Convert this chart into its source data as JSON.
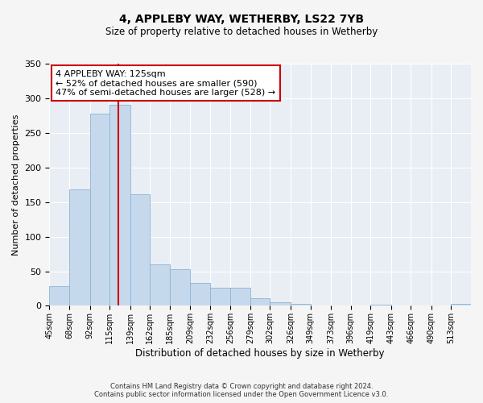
{
  "title": "4, APPLEBY WAY, WETHERBY, LS22 7YB",
  "subtitle": "Size of property relative to detached houses in Wetherby",
  "xlabel": "Distribution of detached houses by size in Wetherby",
  "ylabel": "Number of detached properties",
  "bar_labels": [
    "45sqm",
    "68sqm",
    "92sqm",
    "115sqm",
    "139sqm",
    "162sqm",
    "185sqm",
    "209sqm",
    "232sqm",
    "256sqm",
    "279sqm",
    "302sqm",
    "326sqm",
    "349sqm",
    "373sqm",
    "396sqm",
    "419sqm",
    "443sqm",
    "466sqm",
    "490sqm",
    "513sqm"
  ],
  "bar_values": [
    29,
    168,
    278,
    291,
    161,
    60,
    53,
    33,
    26,
    26,
    11,
    5,
    3,
    0,
    1,
    0,
    2,
    0,
    1,
    0,
    3
  ],
  "bar_color": "#c6d9ec",
  "bar_edge_color": "#8db4d4",
  "plot_bg_color": "#e8eef4",
  "fig_bg_color": "#f5f5f5",
  "grid_color": "#ffffff",
  "ylim": [
    0,
    350
  ],
  "yticks": [
    0,
    50,
    100,
    150,
    200,
    250,
    300,
    350
  ],
  "property_line_x": 125,
  "property_line_color": "#cc0000",
  "annotation_text": "4 APPLEBY WAY: 125sqm\n← 52% of detached houses are smaller (590)\n47% of semi-detached houses are larger (528) →",
  "annotation_box_color": "#ffffff",
  "annotation_box_edge": "#cc0000",
  "footer_line1": "Contains HM Land Registry data © Crown copyright and database right 2024.",
  "footer_line2": "Contains public sector information licensed under the Open Government Licence v3.0."
}
